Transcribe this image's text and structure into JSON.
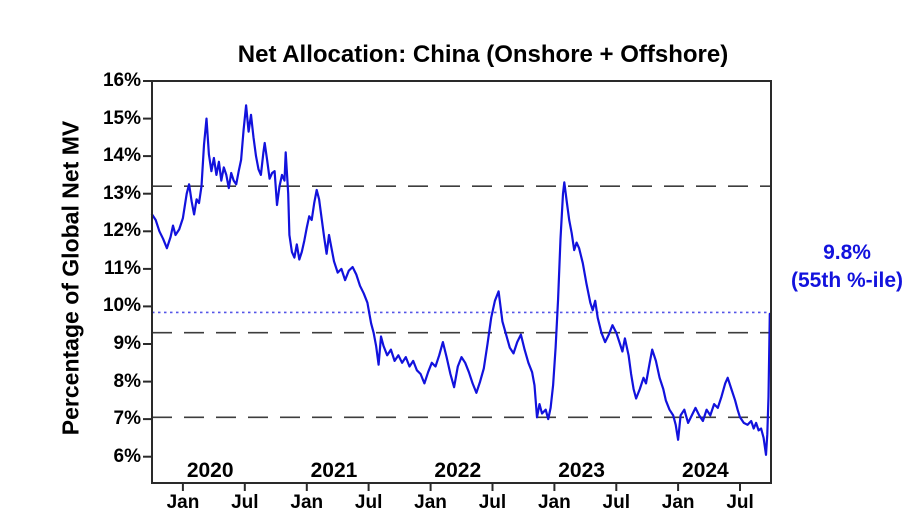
{
  "title": "Net Allocation: China (Onshore + Offshore)",
  "y_axis_label": "Percentage of Global Net MV",
  "annotation": {
    "line1": "9.8%",
    "line2": "(55th %-ile)"
  },
  "colors": {
    "series": "#1212dd",
    "dotted_ref": "#5555e8",
    "dashed_ref": "#3d3d3d",
    "axis": "#2a2a2a",
    "text": "#000000",
    "background": "#ffffff"
  },
  "chart_data": {
    "type": "line",
    "title": "Net Allocation: China (Onshore + Offshore)",
    "xlabel": "",
    "ylabel": "Percentage of Global Net MV",
    "grid": false,
    "xlim": [
      2019.75,
      2024.75
    ],
    "ylim": [
      5.3,
      16
    ],
    "y_ticks": [
      {
        "value": 16,
        "label": "16%"
      },
      {
        "value": 15,
        "label": "15%"
      },
      {
        "value": 14,
        "label": "14%"
      },
      {
        "value": 13,
        "label": "13%"
      },
      {
        "value": 12,
        "label": "12%"
      },
      {
        "value": 11,
        "label": "11%"
      },
      {
        "value": 10,
        "label": "10%"
      },
      {
        "value": 9,
        "label": "9%"
      },
      {
        "value": 8,
        "label": "8%"
      },
      {
        "value": 7,
        "label": "7%"
      },
      {
        "value": 6,
        "label": "6%"
      }
    ],
    "x_ticks": [
      {
        "x": 2020.0,
        "label": "Jan"
      },
      {
        "x": 2020.5,
        "label": "Jul"
      },
      {
        "x": 2021.0,
        "label": "Jan"
      },
      {
        "x": 2021.5,
        "label": "Jul"
      },
      {
        "x": 2022.0,
        "label": "Jan"
      },
      {
        "x": 2022.5,
        "label": "Jul"
      },
      {
        "x": 2023.0,
        "label": "Jan"
      },
      {
        "x": 2023.5,
        "label": "Jul"
      },
      {
        "x": 2024.0,
        "label": "Jan"
      },
      {
        "x": 2024.5,
        "label": "Jul"
      }
    ],
    "year_labels": [
      {
        "x": 2020.22,
        "label": "2020"
      },
      {
        "x": 2021.22,
        "label": "2021"
      },
      {
        "x": 2022.22,
        "label": "2022"
      },
      {
        "x": 2023.22,
        "label": "2023"
      },
      {
        "x": 2024.22,
        "label": "2024"
      }
    ],
    "reference_lines_dashed": [
      13.2,
      9.3,
      7.05
    ],
    "current_level_dotted": 9.84,
    "end_value": "9.8%",
    "end_percentile": "(55th %-ile)",
    "series": [
      {
        "name": "Net allocation to China as % of global net MV",
        "points": [
          [
            2019.75,
            12.45
          ],
          [
            2019.78,
            12.3
          ],
          [
            2019.81,
            12.0
          ],
          [
            2019.84,
            11.8
          ],
          [
            2019.87,
            11.55
          ],
          [
            2019.9,
            11.85
          ],
          [
            2019.92,
            12.15
          ],
          [
            2019.94,
            11.9
          ],
          [
            2019.97,
            12.05
          ],
          [
            2020.0,
            12.35
          ],
          [
            2020.03,
            13.0
          ],
          [
            2020.05,
            13.25
          ],
          [
            2020.07,
            12.8
          ],
          [
            2020.09,
            12.45
          ],
          [
            2020.11,
            12.85
          ],
          [
            2020.13,
            12.75
          ],
          [
            2020.15,
            13.2
          ],
          [
            2020.17,
            14.3
          ],
          [
            2020.19,
            15.0
          ],
          [
            2020.21,
            14.05
          ],
          [
            2020.23,
            13.6
          ],
          [
            2020.25,
            13.95
          ],
          [
            2020.27,
            13.5
          ],
          [
            2020.29,
            13.85
          ],
          [
            2020.31,
            13.35
          ],
          [
            2020.33,
            13.7
          ],
          [
            2020.35,
            13.5
          ],
          [
            2020.37,
            13.15
          ],
          [
            2020.39,
            13.55
          ],
          [
            2020.41,
            13.35
          ],
          [
            2020.43,
            13.25
          ],
          [
            2020.45,
            13.6
          ],
          [
            2020.47,
            13.9
          ],
          [
            2020.49,
            14.7
          ],
          [
            2020.51,
            15.35
          ],
          [
            2020.53,
            14.65
          ],
          [
            2020.55,
            15.1
          ],
          [
            2020.57,
            14.5
          ],
          [
            2020.59,
            14.0
          ],
          [
            2020.61,
            13.65
          ],
          [
            2020.63,
            13.5
          ],
          [
            2020.65,
            14.1
          ],
          [
            2020.66,
            14.35
          ],
          [
            2020.68,
            13.9
          ],
          [
            2020.7,
            13.4
          ],
          [
            2020.72,
            13.55
          ],
          [
            2020.74,
            13.6
          ],
          [
            2020.76,
            12.7
          ],
          [
            2020.78,
            13.2
          ],
          [
            2020.8,
            13.5
          ],
          [
            2020.82,
            13.35
          ],
          [
            2020.83,
            14.1
          ],
          [
            2020.85,
            13.0
          ],
          [
            2020.86,
            11.9
          ],
          [
            2020.88,
            11.45
          ],
          [
            2020.9,
            11.3
          ],
          [
            2020.92,
            11.65
          ],
          [
            2020.94,
            11.25
          ],
          [
            2020.96,
            11.45
          ],
          [
            2020.98,
            11.75
          ],
          [
            2021.0,
            12.1
          ],
          [
            2021.02,
            12.4
          ],
          [
            2021.04,
            12.3
          ],
          [
            2021.06,
            12.75
          ],
          [
            2021.08,
            13.1
          ],
          [
            2021.1,
            12.85
          ],
          [
            2021.12,
            12.35
          ],
          [
            2021.14,
            11.85
          ],
          [
            2021.16,
            11.4
          ],
          [
            2021.18,
            11.9
          ],
          [
            2021.2,
            11.55
          ],
          [
            2021.22,
            11.2
          ],
          [
            2021.25,
            10.9
          ],
          [
            2021.28,
            11.0
          ],
          [
            2021.31,
            10.7
          ],
          [
            2021.34,
            10.95
          ],
          [
            2021.37,
            11.05
          ],
          [
            2021.4,
            10.85
          ],
          [
            2021.43,
            10.55
          ],
          [
            2021.46,
            10.35
          ],
          [
            2021.49,
            10.1
          ],
          [
            2021.52,
            9.55
          ],
          [
            2021.54,
            9.3
          ],
          [
            2021.56,
            8.95
          ],
          [
            2021.58,
            8.45
          ],
          [
            2021.6,
            9.2
          ],
          [
            2021.62,
            8.95
          ],
          [
            2021.65,
            8.7
          ],
          [
            2021.68,
            8.85
          ],
          [
            2021.71,
            8.55
          ],
          [
            2021.74,
            8.7
          ],
          [
            2021.77,
            8.5
          ],
          [
            2021.8,
            8.65
          ],
          [
            2021.83,
            8.4
          ],
          [
            2021.86,
            8.55
          ],
          [
            2021.89,
            8.3
          ],
          [
            2021.92,
            8.2
          ],
          [
            2021.95,
            7.95
          ],
          [
            2021.98,
            8.25
          ],
          [
            2022.01,
            8.5
          ],
          [
            2022.04,
            8.4
          ],
          [
            2022.07,
            8.7
          ],
          [
            2022.1,
            9.05
          ],
          [
            2022.13,
            8.65
          ],
          [
            2022.16,
            8.2
          ],
          [
            2022.19,
            7.85
          ],
          [
            2022.22,
            8.4
          ],
          [
            2022.25,
            8.65
          ],
          [
            2022.28,
            8.5
          ],
          [
            2022.31,
            8.25
          ],
          [
            2022.34,
            7.95
          ],
          [
            2022.37,
            7.7
          ],
          [
            2022.4,
            8.0
          ],
          [
            2022.43,
            8.35
          ],
          [
            2022.46,
            9.0
          ],
          [
            2022.49,
            9.7
          ],
          [
            2022.52,
            10.15
          ],
          [
            2022.55,
            10.4
          ],
          [
            2022.58,
            9.6
          ],
          [
            2022.61,
            9.25
          ],
          [
            2022.64,
            8.9
          ],
          [
            2022.67,
            8.75
          ],
          [
            2022.7,
            9.05
          ],
          [
            2022.73,
            9.25
          ],
          [
            2022.76,
            8.85
          ],
          [
            2022.79,
            8.5
          ],
          [
            2022.82,
            8.25
          ],
          [
            2022.84,
            7.9
          ],
          [
            2022.86,
            7.05
          ],
          [
            2022.88,
            7.4
          ],
          [
            2022.9,
            7.15
          ],
          [
            2022.93,
            7.25
          ],
          [
            2022.95,
            7.0
          ],
          [
            2022.97,
            7.3
          ],
          [
            2022.99,
            7.9
          ],
          [
            2023.01,
            8.9
          ],
          [
            2023.03,
            10.2
          ],
          [
            2023.05,
            11.8
          ],
          [
            2023.07,
            13.0
          ],
          [
            2023.08,
            13.3
          ],
          [
            2023.1,
            12.8
          ],
          [
            2023.12,
            12.3
          ],
          [
            2023.14,
            11.95
          ],
          [
            2023.16,
            11.5
          ],
          [
            2023.18,
            11.7
          ],
          [
            2023.2,
            11.55
          ],
          [
            2023.23,
            11.15
          ],
          [
            2023.26,
            10.6
          ],
          [
            2023.29,
            10.1
          ],
          [
            2023.31,
            9.9
          ],
          [
            2023.33,
            10.15
          ],
          [
            2023.35,
            9.7
          ],
          [
            2023.38,
            9.3
          ],
          [
            2023.41,
            9.05
          ],
          [
            2023.44,
            9.25
          ],
          [
            2023.47,
            9.5
          ],
          [
            2023.5,
            9.3
          ],
          [
            2023.53,
            9.0
          ],
          [
            2023.55,
            8.8
          ],
          [
            2023.57,
            9.15
          ],
          [
            2023.6,
            8.7
          ],
          [
            2023.62,
            8.2
          ],
          [
            2023.64,
            7.8
          ],
          [
            2023.66,
            7.55
          ],
          [
            2023.69,
            7.8
          ],
          [
            2023.72,
            8.1
          ],
          [
            2023.74,
            7.95
          ],
          [
            2023.77,
            8.5
          ],
          [
            2023.79,
            8.85
          ],
          [
            2023.82,
            8.55
          ],
          [
            2023.85,
            8.1
          ],
          [
            2023.88,
            7.8
          ],
          [
            2023.9,
            7.5
          ],
          [
            2023.93,
            7.25
          ],
          [
            2023.96,
            7.1
          ],
          [
            2023.98,
            6.85
          ],
          [
            2024.0,
            6.45
          ],
          [
            2024.02,
            7.1
          ],
          [
            2024.05,
            7.25
          ],
          [
            2024.08,
            6.9
          ],
          [
            2024.11,
            7.1
          ],
          [
            2024.14,
            7.3
          ],
          [
            2024.17,
            7.1
          ],
          [
            2024.2,
            6.95
          ],
          [
            2024.23,
            7.25
          ],
          [
            2024.26,
            7.1
          ],
          [
            2024.29,
            7.4
          ],
          [
            2024.32,
            7.3
          ],
          [
            2024.35,
            7.6
          ],
          [
            2024.38,
            7.95
          ],
          [
            2024.4,
            8.1
          ],
          [
            2024.43,
            7.8
          ],
          [
            2024.46,
            7.5
          ],
          [
            2024.48,
            7.25
          ],
          [
            2024.5,
            7.05
          ],
          [
            2024.53,
            6.9
          ],
          [
            2024.56,
            6.85
          ],
          [
            2024.59,
            6.95
          ],
          [
            2024.61,
            6.75
          ],
          [
            2024.63,
            6.9
          ],
          [
            2024.65,
            6.7
          ],
          [
            2024.67,
            6.75
          ],
          [
            2024.69,
            6.5
          ],
          [
            2024.71,
            6.05
          ],
          [
            2024.72,
            6.6
          ],
          [
            2024.73,
            7.6
          ],
          [
            2024.74,
            9.8
          ]
        ]
      }
    ]
  }
}
